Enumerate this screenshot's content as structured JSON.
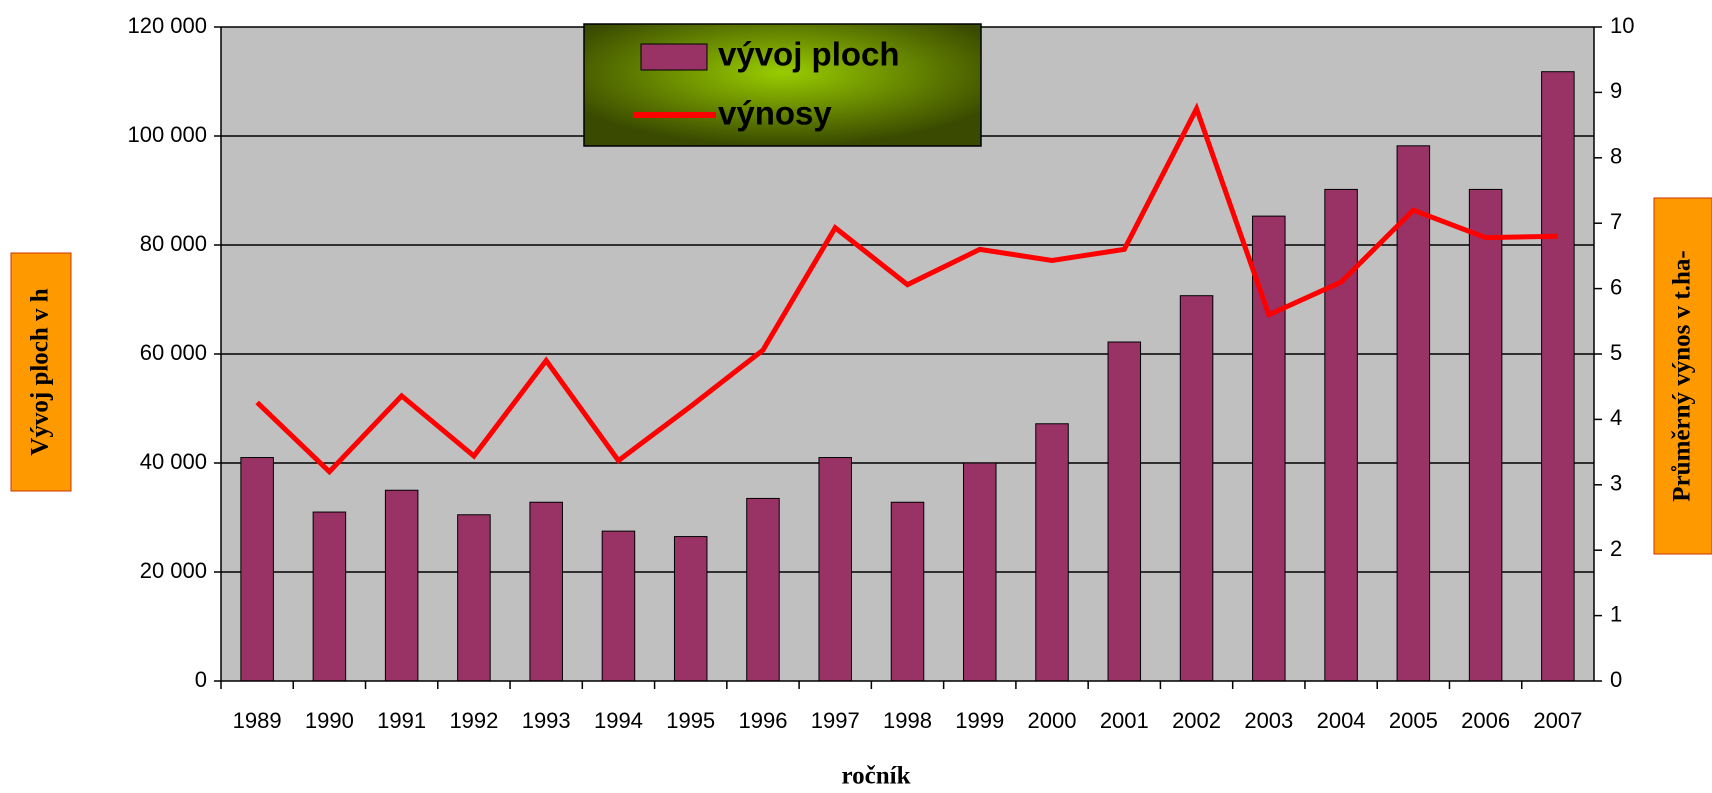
{
  "chart_data": {
    "type": "bar",
    "x_label": "ročník",
    "y_label": "Vývoj ploch v h",
    "y2_label": "Průměrný výnos v t.ha-",
    "categories": [
      "1989",
      "1990",
      "1991",
      "1992",
      "1993",
      "1994",
      "1995",
      "1996",
      "1997",
      "1998",
      "1999",
      "2000",
      "2001",
      "2002",
      "2003",
      "2004",
      "2005",
      "2006",
      "2007"
    ],
    "series": [
      {
        "name": "vývoj ploch",
        "type": "bar",
        "color": "#993366",
        "values": [
          41000,
          31000,
          35000,
          30500,
          32800,
          27500,
          26500,
          33500,
          41000,
          32800,
          40000,
          47200,
          62200,
          70700,
          85300,
          90200,
          98200,
          90200,
          111800
        ]
      },
      {
        "name": "výnosy",
        "type": "line",
        "axis": "y2",
        "color": "#ff0000",
        "values": [
          4.26,
          3.2,
          4.36,
          3.44,
          4.9,
          3.37,
          4.2,
          5.06,
          6.93,
          6.06,
          6.6,
          6.43,
          6.6,
          8.75,
          5.6,
          6.1,
          7.2,
          6.78,
          6.8
        ]
      }
    ],
    "ylim": [
      0,
      120000
    ],
    "yticks": [
      {
        "value": 0,
        "label": "0"
      },
      {
        "value": 20000,
        "label": "20 000"
      },
      {
        "value": 40000,
        "label": "40 000"
      },
      {
        "value": 60000,
        "label": "60 000"
      },
      {
        "value": 80000,
        "label": "80 000"
      },
      {
        "value": 100000,
        "label": "100 000"
      },
      {
        "value": 120000,
        "label": "120 000"
      }
    ],
    "y2lim": [
      0,
      10
    ],
    "y2ticks": [
      0,
      1,
      2,
      3,
      4,
      5,
      6,
      7,
      8,
      9,
      10
    ],
    "grid": true,
    "legend": "top"
  }
}
